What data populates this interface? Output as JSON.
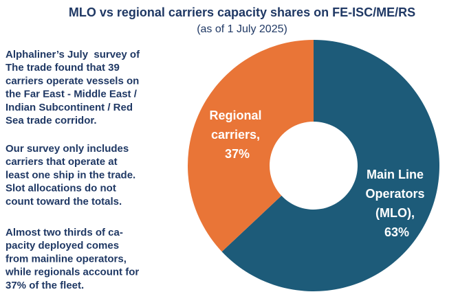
{
  "chart_data": {
    "type": "donut",
    "title": "MLO vs regional carriers capacity shares on FE-ISC/ME/RS",
    "subtitle": "(as of 1 July 2025)",
    "values": [
      63,
      37
    ],
    "value_labels": [
      "Main Line Operators (MLO), 63%",
      "Regional carriers, 37%"
    ],
    "colors": [
      "#1d5b79",
      "#e97537"
    ]
  },
  "notes": [
    [
      "Alphaliner’s July  survey of",
      "The trade found that 39",
      "carriers operate vessels on",
      "the Far East - Middle East /",
      "Indian Subcontinent / Red",
      "Sea trade corridor."
    ],
    [
      "Our survey only includes",
      "carriers that operate at",
      "least one ship in the trade.",
      "Slot allocations do not",
      "count toward the totals."
    ],
    [
      "Almost two thirds of ca-",
      "pacity deployed comes",
      "from mainline operators,",
      "while regionals account for",
      "37% of the fleet."
    ]
  ]
}
